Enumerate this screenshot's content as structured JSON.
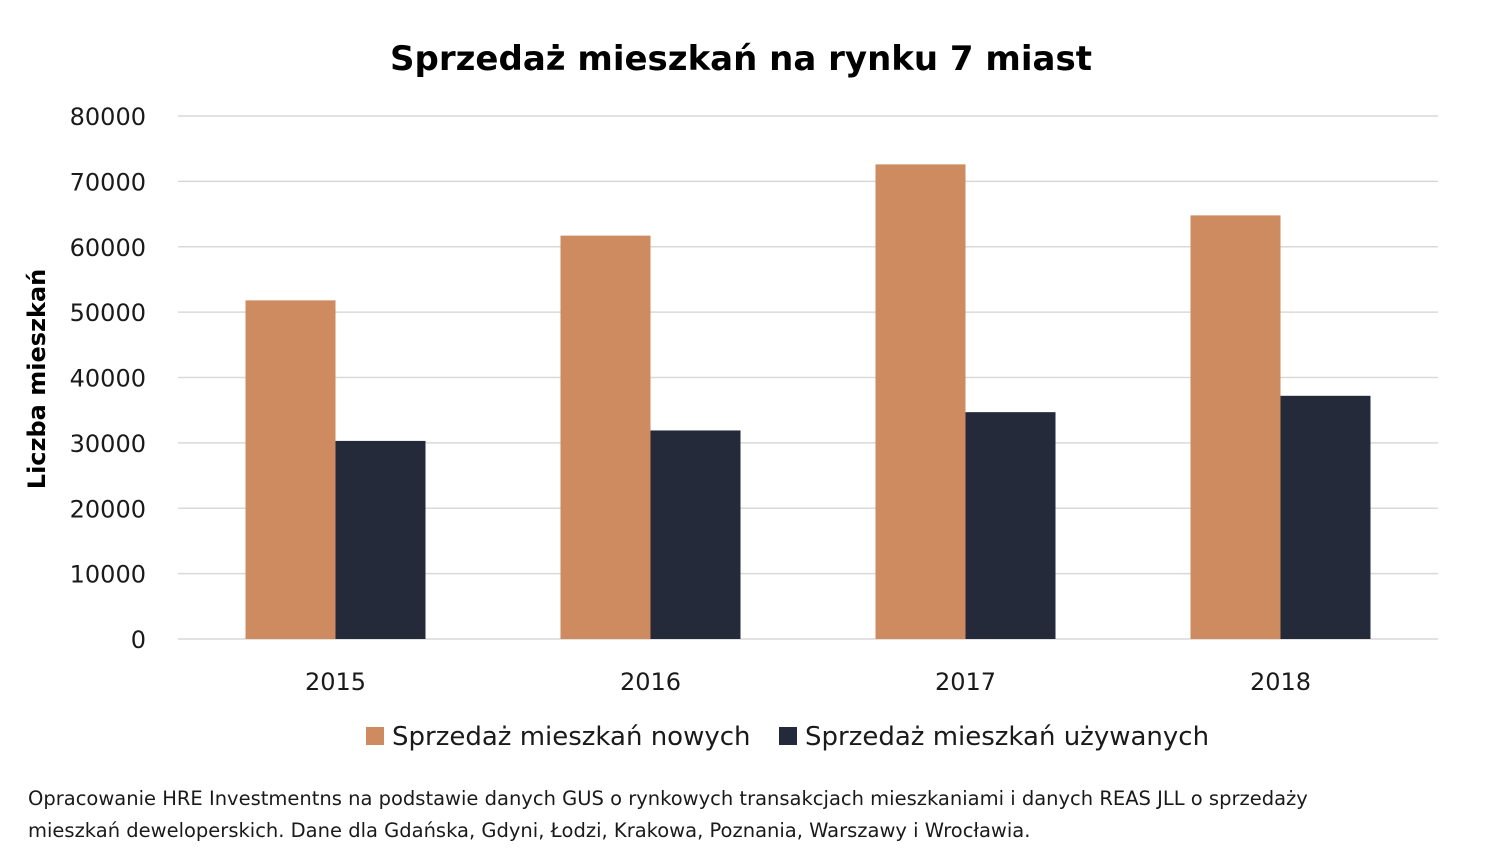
{
  "chart_data": {
    "type": "bar",
    "title": "Sprzedaż mieszkań na rynku 7 miast",
    "xlabel": "",
    "ylabel": "Liczba mieszkań",
    "categories": [
      "2015",
      "2016",
      "2017",
      "2018"
    ],
    "series": [
      {
        "name": "Sprzedaż mieszkań nowych",
        "color": "#cd8b5f",
        "values": [
          51800,
          61700,
          72600,
          64800
        ]
      },
      {
        "name": "Sprzedaż mieszkań używanych",
        "color": "#252a3b",
        "values": [
          30300,
          31900,
          34700,
          37200
        ]
      }
    ],
    "ylim": [
      0,
      80000
    ],
    "yticks": [
      "0",
      "10000",
      "20000",
      "30000",
      "40000",
      "50000",
      "60000",
      "70000",
      "80000"
    ],
    "grid": true,
    "legend_position": "bottom"
  },
  "footnote": {
    "line1": "Opracowanie HRE Investmentns na podstawie danych GUS o rynkowych transakcjach mieszkaniami i danych REAS JLL o sprzedaży",
    "line2": "mieszkań deweloperskich. Dane dla Gdańska, Gdyni, Łodzi, Krakowa, Poznania, Warszawy i Wrocławia."
  }
}
